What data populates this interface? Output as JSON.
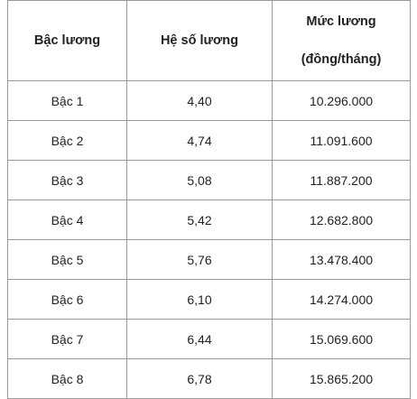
{
  "table": {
    "headers": {
      "col1": "Bậc lương",
      "col2": "Hệ số lương",
      "col3_line1": "Mức lương",
      "col3_line2": "(đồng/tháng)"
    },
    "rows": [
      {
        "grade": "Bậc 1",
        "coefficient": "4,40",
        "salary": "10.296.000"
      },
      {
        "grade": "Bậc 2",
        "coefficient": "4,74",
        "salary": "11.091.600"
      },
      {
        "grade": "Bậc 3",
        "coefficient": "5,08",
        "salary": "11.887.200"
      },
      {
        "grade": "Bậc 4",
        "coefficient": "5,42",
        "salary": "12.682.800"
      },
      {
        "grade": "Bậc 5",
        "coefficient": "5,76",
        "salary": "13.478.400"
      },
      {
        "grade": "Bậc 6",
        "coefficient": "6,10",
        "salary": "14.274.000"
      },
      {
        "grade": "Bậc 7",
        "coefficient": "6,44",
        "salary": "15.069.600"
      },
      {
        "grade": "Bậc 8",
        "coefficient": "6,78",
        "salary": "15.865.200"
      }
    ]
  }
}
